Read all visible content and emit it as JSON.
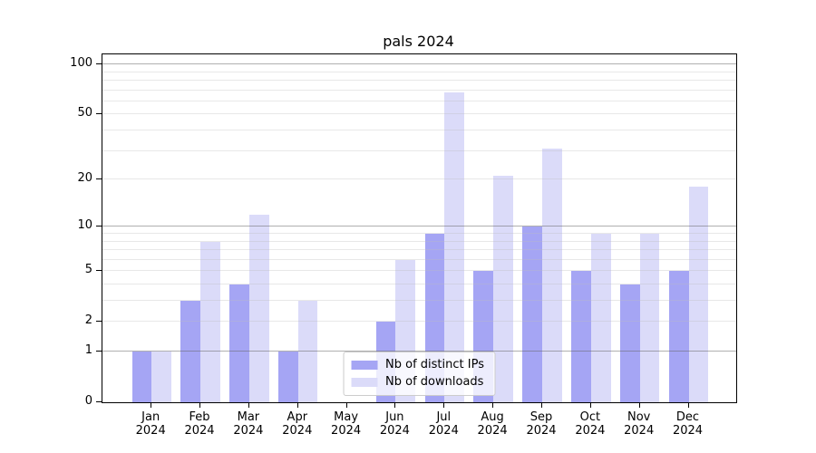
{
  "chart_data": {
    "type": "bar",
    "title": "pals 2024",
    "categories": [
      "Jan",
      "Feb",
      "Mar",
      "Apr",
      "May",
      "Jun",
      "Jul",
      "Aug",
      "Sep",
      "Oct",
      "Nov",
      "Dec"
    ],
    "category_year": "2024",
    "series": [
      {
        "name": "Nb of distinct IPs",
        "color": "#a5a5f4",
        "values": [
          1,
          3,
          4,
          1,
          0,
          2,
          9,
          5,
          10,
          5,
          4,
          5
        ]
      },
      {
        "name": "Nb of downloads",
        "color": "#dbdbf9",
        "values": [
          1,
          8,
          12,
          3,
          0,
          6,
          68,
          21,
          31,
          9,
          9,
          18
        ]
      }
    ],
    "xlabel": "",
    "ylabel": "",
    "yscale": "log1p",
    "ylim": [
      0,
      115
    ],
    "yticks": [
      0,
      1,
      2,
      5,
      10,
      20,
      50,
      100
    ],
    "major_gridlines": [
      1,
      10,
      100
    ],
    "minor_gridlines": [
      2,
      3,
      4,
      5,
      6,
      7,
      8,
      9,
      20,
      30,
      40,
      50,
      60,
      70,
      80,
      90
    ],
    "grid": "on",
    "legend": {
      "position": "bottom-center"
    }
  },
  "colors": {
    "background": "#ffffff",
    "axis": "#000000",
    "major_grid": "#b0b0b0",
    "minor_grid": "#e8e8e8",
    "legend_border": "#cccccc",
    "text": "#000000"
  }
}
